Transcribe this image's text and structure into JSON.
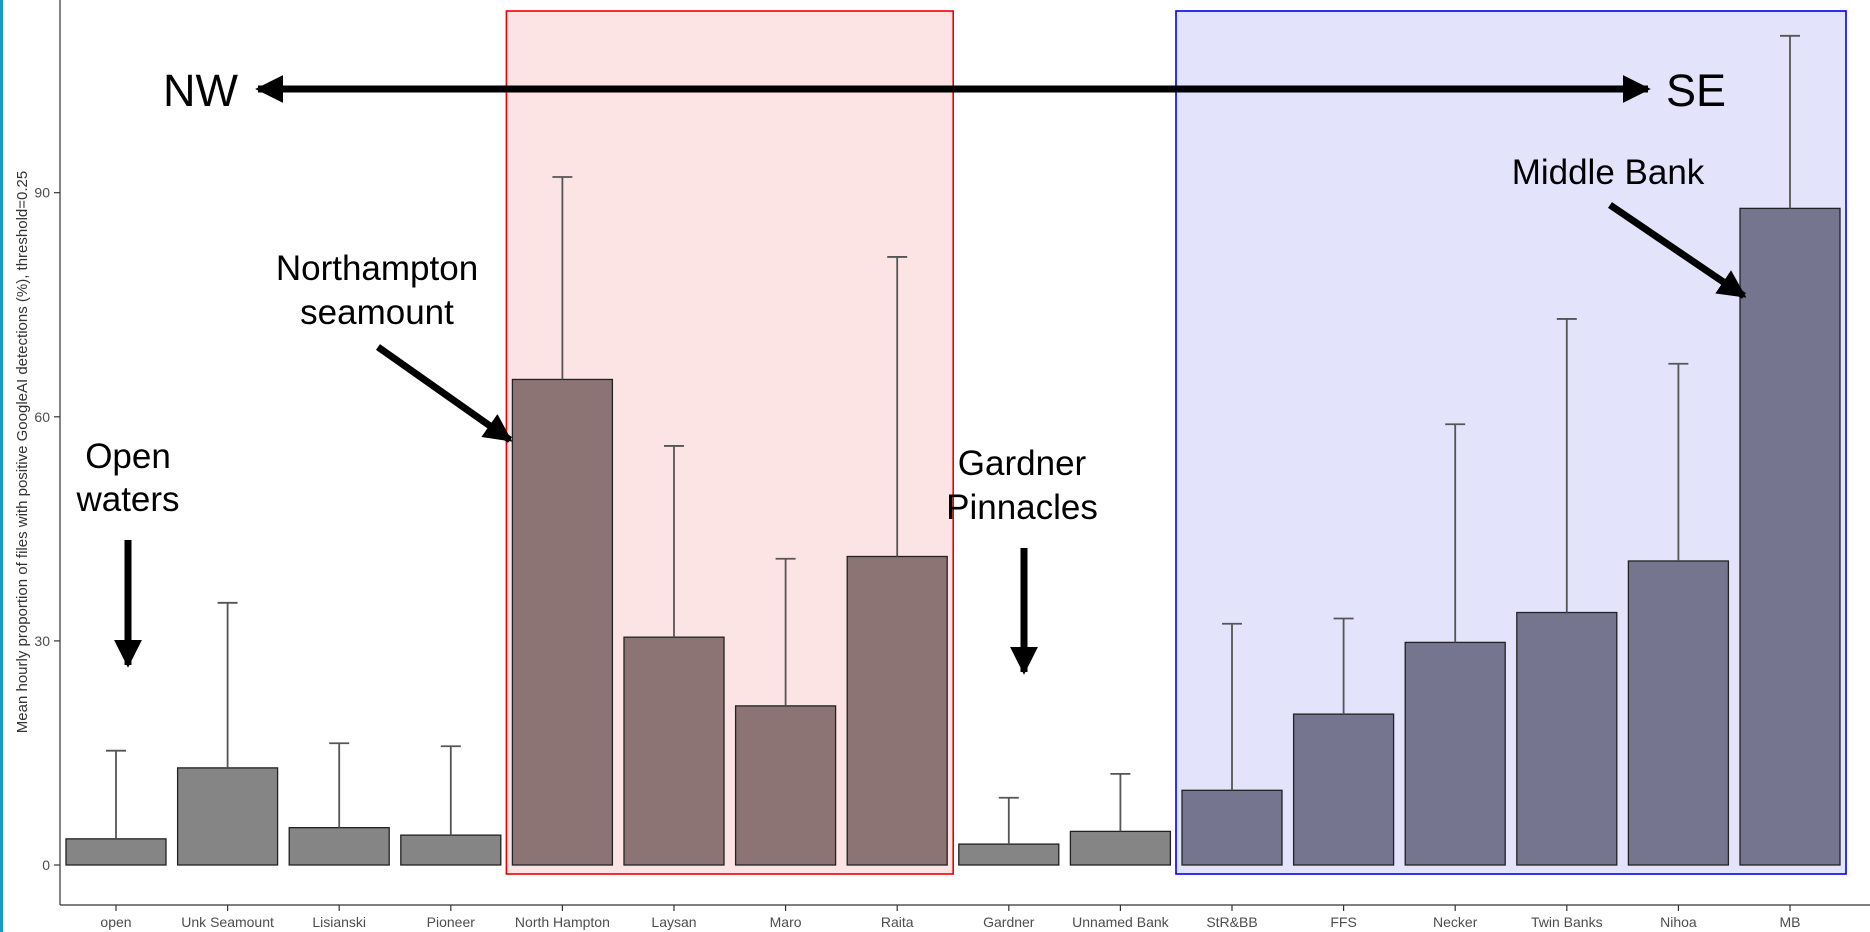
{
  "chart_data": {
    "type": "bar",
    "ylabel": "Mean hourly proportion of files with positive GoogleAI detections (%), threshold=0.25",
    "xlabel": "",
    "ylim": [
      0,
      100
    ],
    "yticks": [
      0,
      30,
      60,
      90
    ],
    "grid": false,
    "categories": [
      "open",
      "Unk Seamount",
      "Lisianski",
      "Pioneer",
      "North Hampton",
      "Laysan",
      "Maro",
      "Raita",
      "Gardner",
      "Unnamed Bank",
      "StR&BB",
      "FFS",
      "Necker",
      "Twin Banks",
      "Nihoa",
      "MB"
    ],
    "values": [
      3.5,
      13,
      5,
      4,
      65,
      30.5,
      21.3,
      41.3,
      2.8,
      4.5,
      10,
      20.2,
      29.8,
      33.8,
      40.7,
      87.9
    ],
    "error_upper": [
      15.3,
      35.1,
      16.3,
      15.9,
      92.1,
      56.1,
      41,
      81.4,
      9,
      12.2,
      32.3,
      33,
      59,
      73.1,
      67.1,
      111
    ],
    "groups": [
      {
        "name": "Northampton seamount group",
        "from": "North Hampton",
        "to": "Raita",
        "fill": "#fde4e4",
        "border": "#ee0000",
        "bar_color": "#8c7474"
      },
      {
        "name": "Middle Bank group",
        "from": "StR&BB",
        "to": "MB",
        "fill": "#e3e3fb",
        "border": "#0000ee",
        "bar_color": "#757590"
      }
    ],
    "default_bar_color": "#858585",
    "annotations": {
      "nw": "NW",
      "se": "SE",
      "open_waters": [
        "Open",
        "waters"
      ],
      "northampton": [
        "Northampton",
        "seamount"
      ],
      "gardner": [
        "Gardner",
        "Pinnacles"
      ],
      "middle_bank": [
        "Middle Bank"
      ]
    }
  }
}
